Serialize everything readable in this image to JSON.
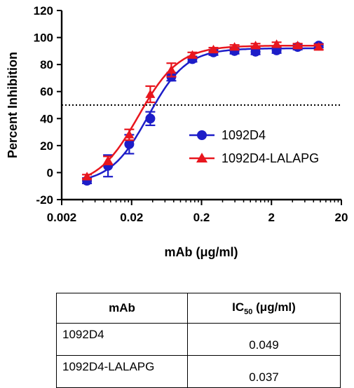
{
  "chart_data": {
    "type": "scatter",
    "xlabel": "mAb (μg/ml)",
    "ylabel": "Percent Inhibition",
    "xscale": "log",
    "xlim": [
      0.002,
      20
    ],
    "ylim": [
      -20,
      120
    ],
    "x_ticks": [
      "0.002",
      "0.02",
      "0.2",
      "2",
      "20"
    ],
    "y_ticks": [
      "-20",
      "0",
      "20",
      "40",
      "60",
      "80",
      "100",
      "120"
    ],
    "reference_line": {
      "y": 50,
      "style": "dotted"
    },
    "legend_position": "right-middle",
    "series": [
      {
        "name": "1092D4",
        "marker": "circle",
        "color": "#1d1dc8",
        "x": [
          0.0046,
          0.0092,
          0.0185,
          0.037,
          0.074,
          0.148,
          0.296,
          0.593,
          1.185,
          2.37,
          4.74,
          9.48
        ],
        "y": [
          -6,
          5,
          21,
          40,
          71,
          84,
          89,
          90,
          89.5,
          90.5,
          93,
          94
        ],
        "err": [
          2,
          8,
          7,
          5,
          3,
          2,
          2,
          2,
          2,
          2,
          2,
          1.5
        ]
      },
      {
        "name": "1092D4-LALAPG",
        "marker": "triangle",
        "color": "#e8161e",
        "x": [
          0.0046,
          0.0092,
          0.0185,
          0.037,
          0.074,
          0.148,
          0.296,
          0.593,
          1.185,
          2.37,
          4.74,
          9.48
        ],
        "y": [
          -3,
          9,
          28,
          58,
          76,
          87,
          91,
          93,
          94,
          95,
          94,
          93
        ],
        "err": [
          1.5,
          3,
          4,
          6,
          5,
          2,
          1.5,
          1.5,
          1.5,
          1.5,
          1.5,
          2
        ]
      }
    ]
  },
  "table": {
    "header_mab": "mAb",
    "header_ic50_main": "IC",
    "header_ic50_sub": "50",
    "header_ic50_unit": " (μg/ml)",
    "rows": [
      {
        "mab": "1092D4",
        "ic50": "0.049"
      },
      {
        "mab": "1092D4-LALAPG",
        "ic50": "0.037"
      }
    ]
  }
}
